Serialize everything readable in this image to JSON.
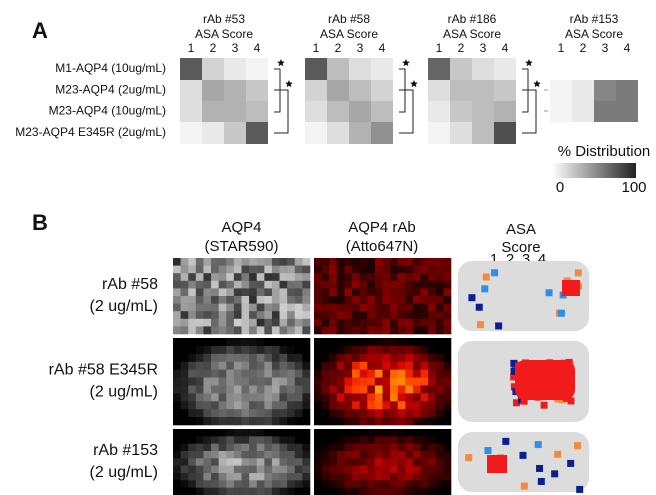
{
  "panel_a": {
    "label": "A",
    "x_title": "ASA Score",
    "score_labels": [
      "1",
      "2",
      "3",
      "4"
    ],
    "row_labels": [
      "M1-AQP4 (10ug/mL)",
      "M23-AQP4 (2ug/mL)",
      "M23-AQP4 (10ug/mL)",
      "M23-AQP4 E345R (2ug/mL)"
    ],
    "heatmaps": [
      {
        "title": "rAb #53",
        "values": [
          [
            75,
            20,
            10,
            5
          ],
          [
            15,
            40,
            35,
            25
          ],
          [
            15,
            35,
            35,
            30
          ],
          [
            5,
            10,
            25,
            75
          ]
        ]
      },
      {
        "title": "rAb #58",
        "values": [
          [
            75,
            30,
            15,
            10
          ],
          [
            20,
            40,
            30,
            20
          ],
          [
            15,
            30,
            40,
            30
          ],
          [
            5,
            15,
            35,
            50
          ]
        ]
      },
      {
        "title": "rAb #186",
        "values": [
          [
            70,
            25,
            15,
            10
          ],
          [
            15,
            30,
            30,
            25
          ],
          [
            10,
            25,
            30,
            35
          ],
          [
            5,
            15,
            30,
            80
          ]
        ]
      },
      {
        "title": "rAb #153",
        "values": [
          [
            null,
            null,
            null,
            null
          ],
          [
            5,
            10,
            55,
            60
          ],
          [
            5,
            10,
            60,
            60
          ],
          [
            null,
            null,
            null,
            null
          ]
        ]
      }
    ],
    "colorbar": {
      "title": "% Distribution",
      "min": 0,
      "max": 100
    }
  },
  "panel_b": {
    "label": "B",
    "column_titles": [
      [
        "AQP4",
        "(STAR590)"
      ],
      [
        "AQP4 rAb",
        "(Atto647N)"
      ]
    ],
    "asa_legend": {
      "title": [
        "ASA",
        "Score"
      ],
      "scores": [
        "1",
        "2",
        "3",
        "4"
      ],
      "colors": [
        "#0b1f8f",
        "#2f8ee8",
        "#f58a3c",
        "#f21b1b"
      ]
    },
    "rows": [
      [
        "rAb #58",
        "(2 ug/mL)"
      ],
      [
        "rAb #58 E345R",
        "(2 ug/mL)"
      ],
      [
        "rAb #153",
        "(2 ug/mL)"
      ]
    ]
  }
}
